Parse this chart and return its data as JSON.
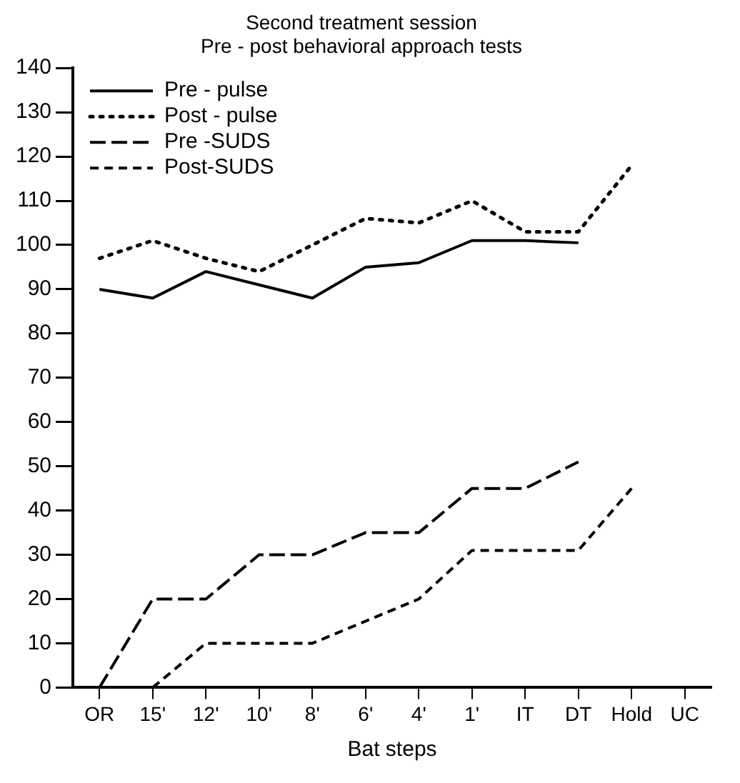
{
  "chart_data": {
    "type": "line",
    "title": [
      "Second treatment session",
      "Pre - post behavioral approach tests"
    ],
    "xlabel": "Bat steps",
    "categories": [
      "OR",
      "15'",
      "12'",
      "10'",
      "8'",
      "6'",
      "4'",
      "1'",
      "IT",
      "DT",
      "Hold",
      "UC"
    ],
    "series": [
      {
        "name": "Pre - pulse",
        "color": "#000000",
        "line_style": "solid",
        "values": [
          90,
          88,
          94,
          91,
          88,
          95,
          96,
          101,
          101,
          100.5,
          null,
          null
        ]
      },
      {
        "name": "Post - pulse",
        "color": "#000000",
        "line_style": "dotted",
        "values": [
          97,
          101,
          97,
          94,
          100,
          106,
          105,
          110,
          103,
          103,
          118,
          null
        ]
      },
      {
        "name": "Pre -SUDS",
        "color": "#000000",
        "line_style": "dashed",
        "values": [
          0,
          20,
          20,
          30,
          30,
          35,
          35,
          45,
          45,
          51,
          null,
          null
        ]
      },
      {
        "name": "Post-SUDS",
        "color": "#000000",
        "line_style": "dashed",
        "values": [
          null,
          0,
          10,
          10,
          10,
          15,
          20,
          31,
          31,
          31,
          45,
          null
        ]
      }
    ],
    "ylim": [
      0,
      140
    ],
    "yticks": [
      0,
      10,
      20,
      30,
      40,
      50,
      60,
      70,
      80,
      90,
      100,
      110,
      120,
      130,
      140
    ],
    "grid": false,
    "legend": "top left",
    "marker": "none"
  }
}
